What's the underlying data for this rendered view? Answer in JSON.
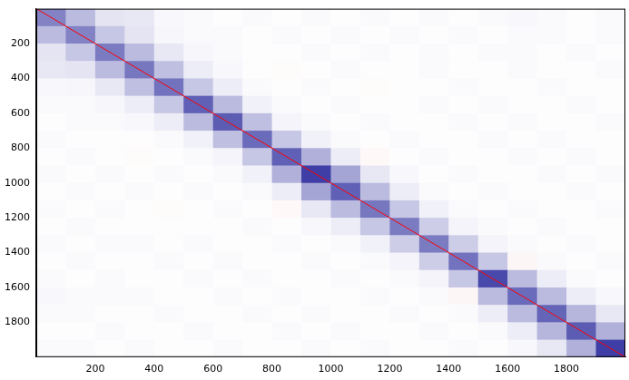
{
  "chart_data": {
    "type": "heatmap",
    "xlim": [
      0,
      2000
    ],
    "ylim": [
      0,
      2000
    ],
    "xticks": [
      200,
      400,
      600,
      800,
      1000,
      1200,
      1400,
      1600,
      1800
    ],
    "yticks": [
      200,
      400,
      600,
      800,
      1000,
      1200,
      1400,
      1600,
      1800
    ],
    "grid": false,
    "zlim": [
      -1,
      1
    ],
    "cells": [
      [
        0.55,
        0.3,
        0.12,
        0.1,
        0.03,
        0.02,
        0.01,
        0.02,
        0.01,
        0.02,
        0.01,
        0.02,
        0.01,
        0.02,
        0.01,
        0.02,
        0.03,
        0.02,
        0.01,
        0.02
      ],
      [
        0.3,
        0.55,
        0.25,
        0.12,
        0.04,
        0.02,
        0.02,
        0.01,
        0.02,
        0.01,
        0.02,
        0.01,
        0.02,
        0.01,
        0.02,
        0.01,
        0.02,
        0.02,
        0.01,
        0.02
      ],
      [
        0.12,
        0.25,
        0.58,
        0.3,
        0.1,
        0.04,
        0.02,
        0.01,
        0.01,
        0.02,
        0.01,
        0.02,
        0.01,
        0.02,
        0.01,
        0.02,
        0.02,
        0.01,
        0.02,
        0.01
      ],
      [
        0.1,
        0.12,
        0.3,
        0.6,
        0.28,
        0.08,
        0.03,
        0.01,
        -0.02,
        0.01,
        0.02,
        0.01,
        0.01,
        0.02,
        0.01,
        0.01,
        0.02,
        0.01,
        0.01,
        0.02
      ],
      [
        0.03,
        0.04,
        0.1,
        0.28,
        0.62,
        0.25,
        0.08,
        0.02,
        0.01,
        0.02,
        0.01,
        -0.02,
        0.01,
        0.01,
        0.02,
        0.01,
        0.01,
        0.02,
        0.01,
        0.01
      ],
      [
        0.02,
        0.02,
        0.04,
        0.08,
        0.25,
        0.7,
        0.3,
        0.06,
        0.02,
        0.01,
        0.02,
        0.01,
        0.01,
        0.02,
        0.01,
        0.02,
        0.01,
        0.01,
        0.02,
        0.01
      ],
      [
        0.01,
        0.02,
        0.02,
        0.03,
        0.08,
        0.3,
        0.72,
        0.28,
        0.05,
        0.02,
        0.01,
        0.02,
        0.01,
        0.01,
        0.02,
        0.01,
        0.02,
        0.01,
        0.01,
        0.02
      ],
      [
        0.02,
        0.01,
        0.01,
        0.01,
        0.02,
        0.06,
        0.28,
        0.65,
        0.25,
        0.06,
        0.02,
        0.01,
        0.02,
        0.01,
        0.01,
        0.02,
        0.01,
        0.02,
        0.01,
        0.01
      ],
      [
        0.01,
        0.02,
        0.01,
        -0.02,
        0.01,
        0.02,
        0.05,
        0.25,
        0.7,
        0.35,
        0.08,
        -0.03,
        0.01,
        0.02,
        0.01,
        0.01,
        0.02,
        0.01,
        0.02,
        0.01
      ],
      [
        0.02,
        0.01,
        0.02,
        0.01,
        0.02,
        0.01,
        0.02,
        0.06,
        0.35,
        0.85,
        0.4,
        0.1,
        0.03,
        0.01,
        0.02,
        0.01,
        0.01,
        0.02,
        0.01,
        0.02
      ],
      [
        0.01,
        0.02,
        0.01,
        0.02,
        0.01,
        0.02,
        0.01,
        0.02,
        0.08,
        0.4,
        0.7,
        0.3,
        0.08,
        0.02,
        0.01,
        0.02,
        0.01,
        0.01,
        0.02,
        0.01
      ],
      [
        0.02,
        0.01,
        0.02,
        0.01,
        -0.02,
        0.01,
        0.02,
        0.01,
        -0.03,
        0.1,
        0.3,
        0.6,
        0.25,
        0.06,
        0.02,
        0.01,
        0.02,
        0.01,
        0.01,
        0.02
      ],
      [
        0.01,
        0.02,
        0.01,
        0.01,
        0.01,
        0.01,
        0.01,
        0.02,
        0.01,
        0.03,
        0.08,
        0.25,
        0.58,
        0.22,
        0.05,
        0.02,
        0.01,
        0.02,
        0.01,
        0.01
      ],
      [
        0.02,
        0.01,
        0.02,
        0.02,
        0.01,
        0.02,
        0.01,
        0.01,
        0.02,
        0.01,
        0.02,
        0.06,
        0.22,
        0.58,
        0.22,
        0.05,
        0.02,
        0.01,
        0.02,
        0.01
      ],
      [
        0.01,
        0.02,
        0.01,
        0.01,
        0.02,
        0.01,
        0.02,
        0.01,
        0.01,
        0.02,
        0.01,
        0.02,
        0.05,
        0.22,
        0.62,
        0.25,
        -0.04,
        0.02,
        0.01,
        0.02
      ],
      [
        0.02,
        0.01,
        0.02,
        0.01,
        0.01,
        0.02,
        0.01,
        0.02,
        0.01,
        0.01,
        0.02,
        0.01,
        0.02,
        0.05,
        0.25,
        0.8,
        0.3,
        0.08,
        0.02,
        0.01
      ],
      [
        0.03,
        0.02,
        0.02,
        0.02,
        0.01,
        0.01,
        0.02,
        0.01,
        0.02,
        0.01,
        0.01,
        0.02,
        0.01,
        0.02,
        -0.04,
        0.3,
        0.65,
        0.3,
        0.08,
        0.03
      ],
      [
        0.02,
        0.02,
        0.01,
        0.01,
        0.02,
        0.01,
        0.01,
        0.02,
        0.01,
        0.02,
        0.01,
        0.01,
        0.02,
        0.01,
        0.02,
        0.08,
        0.3,
        0.68,
        0.32,
        0.1
      ],
      [
        0.01,
        0.01,
        0.02,
        0.01,
        0.01,
        0.02,
        0.01,
        0.01,
        0.02,
        0.01,
        0.02,
        0.01,
        0.01,
        0.02,
        0.01,
        0.02,
        0.08,
        0.32,
        0.72,
        0.35
      ],
      [
        0.02,
        0.02,
        0.01,
        0.02,
        0.01,
        0.01,
        0.02,
        0.01,
        0.01,
        0.02,
        0.01,
        0.02,
        0.01,
        0.01,
        0.02,
        0.01,
        0.03,
        0.1,
        0.35,
        0.85
      ]
    ],
    "series": [
      {
        "type": "line",
        "color": "#ff0000",
        "x": [
          0,
          2000
        ],
        "values": [
          0,
          2000
        ]
      }
    ]
  }
}
